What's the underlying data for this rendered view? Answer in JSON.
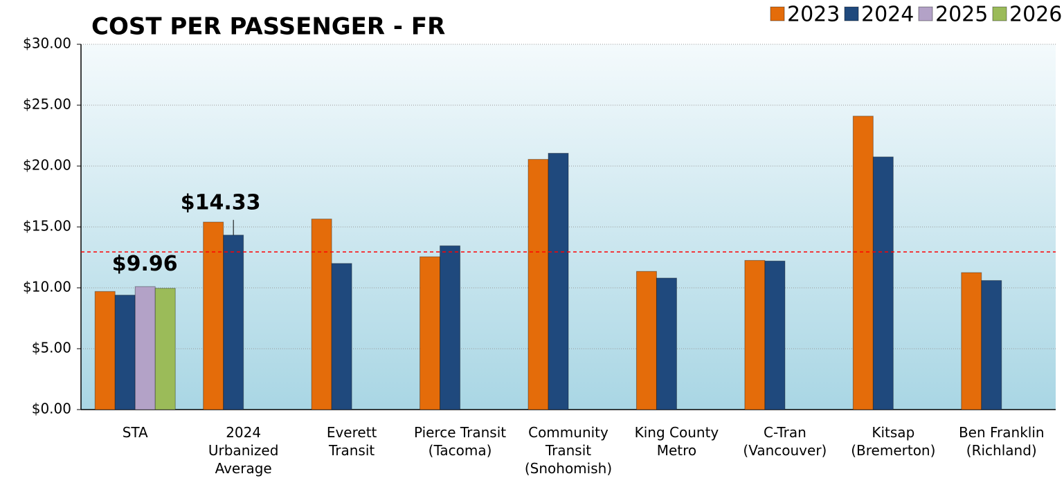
{
  "chart_data": {
    "type": "bar",
    "title": "COST PER PASSENGER - FR",
    "categories": [
      "STA",
      "2024\nUrbanized\nAverage",
      "Everett\nTransit",
      "Pierce Transit\n(Tacoma)",
      "Community\nTransit\n(Snohomish)",
      "King County\nMetro",
      "C-Tran\n(Vancouver)",
      "Kitsap\n(Bremerton)",
      "Ben Franklin\n(Richland)"
    ],
    "series": [
      {
        "name": "2023",
        "color": "#e46c0a",
        "values": [
          9.7,
          15.4,
          15.65,
          12.55,
          20.55,
          11.35,
          12.25,
          24.1,
          11.25
        ]
      },
      {
        "name": "2024",
        "color": "#1f497d",
        "values": [
          9.4,
          14.33,
          12.0,
          13.45,
          21.05,
          10.8,
          12.2,
          20.75,
          10.6
        ],
        "value_labels": [
          null,
          "$14.33",
          null,
          null,
          null,
          null,
          null,
          null,
          null
        ]
      },
      {
        "name": "2025",
        "color": "#b3a2c7",
        "values": [
          10.1,
          null,
          null,
          null,
          null,
          null,
          null,
          null,
          null
        ]
      },
      {
        "name": "2026",
        "color": "#9bbb59",
        "values": [
          9.96,
          null,
          null,
          null,
          null,
          null,
          null,
          null,
          null
        ],
        "value_labels": [
          "$9.96",
          null,
          null,
          null,
          null,
          null,
          null,
          null,
          null
        ]
      }
    ],
    "reference_line": 12.95,
    "reference_line_color": "#ff0000",
    "ylim": [
      0,
      30
    ],
    "yticks": [
      {
        "value": 0,
        "label": "$0.00"
      },
      {
        "value": 5,
        "label": "$5.00"
      },
      {
        "value": 10,
        "label": "$10.00"
      },
      {
        "value": 15,
        "label": "$15.00"
      },
      {
        "value": 20,
        "label": "$20.00"
      },
      {
        "value": 25,
        "label": "$25.00"
      },
      {
        "value": 30,
        "label": "$30.00"
      }
    ],
    "grid": true,
    "legend": "top-right"
  }
}
